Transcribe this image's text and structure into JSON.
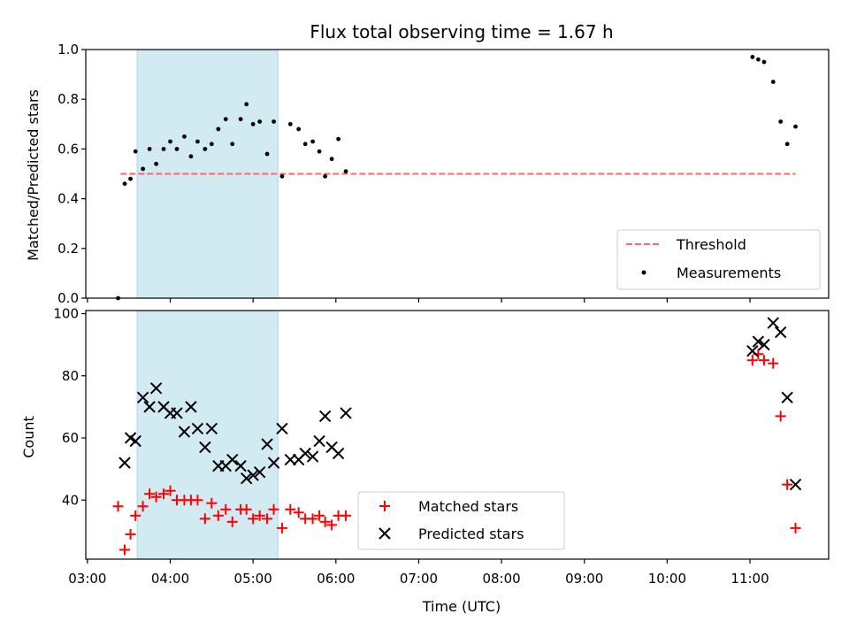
{
  "chart_data": {
    "title": "Flux total observing time = 1.67 h",
    "xlabel": "Time (UTC)",
    "x_ticks": [
      "03:00",
      "04:00",
      "05:00",
      "06:00",
      "07:00",
      "08:00",
      "09:00",
      "10:00",
      "11:00"
    ],
    "xlim_hours": [
      2.98,
      11.95
    ],
    "shaded_span_hours": [
      3.6,
      5.3
    ],
    "colors": {
      "shade": "#add8e6",
      "threshold": "#ff6666",
      "matched": "#ff0000",
      "predicted": "#000000",
      "measurement": "#000000"
    },
    "panels": [
      {
        "name": "ratio",
        "type": "scatter",
        "ylabel": "Matched/Predicted stars",
        "ylim": [
          0,
          1.0
        ],
        "y_ticks": [
          "0.0",
          "0.2",
          "0.4",
          "0.6",
          "0.8",
          "1.0"
        ],
        "y_tick_values": [
          0,
          0.2,
          0.4,
          0.6,
          0.8,
          1.0
        ],
        "legend_position": "lower-right",
        "threshold": {
          "name": "Threshold",
          "value": 0.5,
          "x_range": [
            3.4,
            11.55
          ]
        },
        "series": [
          {
            "name": "Measurements",
            "points": [
              [
                3.37,
                0.0
              ],
              [
                3.45,
                0.46
              ],
              [
                3.52,
                0.48
              ],
              [
                3.58,
                0.59
              ],
              [
                3.67,
                0.52
              ],
              [
                3.75,
                0.6
              ],
              [
                3.83,
                0.54
              ],
              [
                3.92,
                0.6
              ],
              [
                4.0,
                0.63
              ],
              [
                4.08,
                0.6
              ],
              [
                4.17,
                0.65
              ],
              [
                4.25,
                0.57
              ],
              [
                4.33,
                0.63
              ],
              [
                4.42,
                0.6
              ],
              [
                4.5,
                0.62
              ],
              [
                4.58,
                0.68
              ],
              [
                4.67,
                0.72
              ],
              [
                4.75,
                0.62
              ],
              [
                4.85,
                0.72
              ],
              [
                4.92,
                0.78
              ],
              [
                5.0,
                0.7
              ],
              [
                5.08,
                0.71
              ],
              [
                5.17,
                0.58
              ],
              [
                5.25,
                0.71
              ],
              [
                5.35,
                0.49
              ],
              [
                5.45,
                0.7
              ],
              [
                5.55,
                0.68
              ],
              [
                5.63,
                0.62
              ],
              [
                5.72,
                0.63
              ],
              [
                5.8,
                0.59
              ],
              [
                5.87,
                0.49
              ],
              [
                5.95,
                0.56
              ],
              [
                6.03,
                0.64
              ],
              [
                6.12,
                0.51
              ],
              [
                11.03,
                0.97
              ],
              [
                11.1,
                0.96
              ],
              [
                11.17,
                0.95
              ],
              [
                11.28,
                0.87
              ],
              [
                11.37,
                0.71
              ],
              [
                11.45,
                0.62
              ],
              [
                11.55,
                0.69
              ]
            ]
          }
        ]
      },
      {
        "name": "counts",
        "type": "scatter",
        "ylabel": "Count",
        "ylim": [
          21,
          101
        ],
        "y_ticks": [
          "40",
          "60",
          "80",
          "100"
        ],
        "y_tick_values": [
          40,
          60,
          80,
          100
        ],
        "legend_position": "lower-center",
        "series": [
          {
            "name": "Matched stars",
            "marker": "plus",
            "points": [
              [
                3.37,
                38
              ],
              [
                3.45,
                24
              ],
              [
                3.52,
                29
              ],
              [
                3.58,
                35
              ],
              [
                3.67,
                38
              ],
              [
                3.75,
                42
              ],
              [
                3.83,
                41
              ],
              [
                3.92,
                42
              ],
              [
                4.0,
                43
              ],
              [
                4.08,
                40
              ],
              [
                4.17,
                40
              ],
              [
                4.25,
                40
              ],
              [
                4.33,
                40
              ],
              [
                4.42,
                34
              ],
              [
                4.5,
                39
              ],
              [
                4.58,
                35
              ],
              [
                4.67,
                37
              ],
              [
                4.75,
                33
              ],
              [
                4.85,
                37
              ],
              [
                4.92,
                37
              ],
              [
                5.0,
                34
              ],
              [
                5.08,
                35
              ],
              [
                5.17,
                34
              ],
              [
                5.25,
                37
              ],
              [
                5.35,
                31
              ],
              [
                5.45,
                37
              ],
              [
                5.55,
                36
              ],
              [
                5.63,
                34
              ],
              [
                5.72,
                34
              ],
              [
                5.8,
                35
              ],
              [
                5.87,
                33
              ],
              [
                5.95,
                32
              ],
              [
                6.03,
                35
              ],
              [
                6.12,
                35
              ],
              [
                11.03,
                85
              ],
              [
                11.1,
                87
              ],
              [
                11.17,
                85
              ],
              [
                11.28,
                84
              ],
              [
                11.37,
                67
              ],
              [
                11.45,
                45
              ],
              [
                11.55,
                31
              ]
            ]
          },
          {
            "name": "Predicted stars",
            "marker": "x",
            "points": [
              [
                3.45,
                52
              ],
              [
                3.52,
                60
              ],
              [
                3.58,
                59
              ],
              [
                3.67,
                73
              ],
              [
                3.75,
                70
              ],
              [
                3.83,
                76
              ],
              [
                3.92,
                70
              ],
              [
                4.0,
                68
              ],
              [
                4.08,
                68
              ],
              [
                4.17,
                62
              ],
              [
                4.25,
                70
              ],
              [
                4.33,
                63
              ],
              [
                4.42,
                57
              ],
              [
                4.5,
                63
              ],
              [
                4.58,
                51
              ],
              [
                4.67,
                51
              ],
              [
                4.75,
                53
              ],
              [
                4.85,
                51
              ],
              [
                4.92,
                47
              ],
              [
                5.0,
                48
              ],
              [
                5.08,
                49
              ],
              [
                5.17,
                58
              ],
              [
                5.25,
                52
              ],
              [
                5.35,
                63
              ],
              [
                5.45,
                53
              ],
              [
                5.55,
                53
              ],
              [
                5.63,
                55
              ],
              [
                5.72,
                54
              ],
              [
                5.8,
                59
              ],
              [
                5.87,
                67
              ],
              [
                5.95,
                57
              ],
              [
                6.03,
                55
              ],
              [
                6.12,
                68
              ],
              [
                11.03,
                88
              ],
              [
                11.1,
                91
              ],
              [
                11.17,
                90
              ],
              [
                11.28,
                97
              ],
              [
                11.37,
                94
              ],
              [
                11.45,
                73
              ],
              [
                11.55,
                45
              ]
            ]
          }
        ]
      }
    ]
  }
}
